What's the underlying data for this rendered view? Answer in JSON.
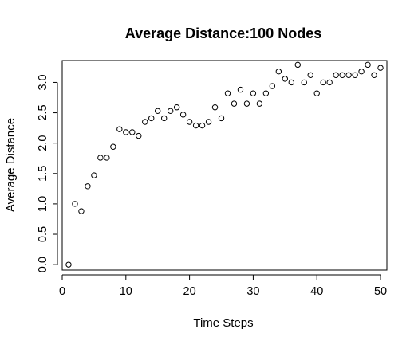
{
  "chart_data": {
    "type": "scatter",
    "title": "Average Distance:100 Nodes",
    "xlabel": "Time Steps",
    "ylabel": "Average Distance",
    "xlim": [
      0,
      51
    ],
    "ylim": [
      -0.09,
      3.36
    ],
    "xticks": [
      0,
      10,
      20,
      30,
      40,
      50
    ],
    "yticks": [
      0.0,
      0.5,
      1.0,
      1.5,
      2.0,
      2.5,
      3.0
    ],
    "xtick_labels": [
      "0",
      "10",
      "20",
      "30",
      "40",
      "50"
    ],
    "ytick_labels": [
      "0.0",
      "0.5",
      "1.0",
      "1.5",
      "2.0",
      "2.5",
      "3.0"
    ],
    "grid": false,
    "marker": "open-circle",
    "x": [
      1,
      2,
      3,
      4,
      5,
      6,
      7,
      8,
      9,
      10,
      11,
      12,
      13,
      14,
      15,
      16,
      17,
      18,
      19,
      20,
      21,
      22,
      23,
      24,
      25,
      26,
      27,
      28,
      29,
      30,
      31,
      32,
      33,
      34,
      35,
      36,
      37,
      38,
      39,
      40,
      41,
      42,
      43,
      44,
      45,
      46,
      47,
      48,
      49,
      50
    ],
    "y": [
      0.0,
      1.0,
      0.88,
      1.29,
      1.47,
      1.76,
      1.76,
      1.94,
      2.23,
      2.18,
      2.18,
      2.12,
      2.35,
      2.41,
      2.53,
      2.41,
      2.53,
      2.59,
      2.47,
      2.35,
      2.29,
      2.29,
      2.35,
      2.59,
      2.41,
      2.82,
      2.65,
      2.88,
      2.65,
      2.82,
      2.65,
      2.82,
      2.94,
      3.18,
      3.06,
      3.0,
      3.29,
      3.0,
      3.12,
      2.82,
      3.0,
      3.0,
      3.12,
      3.12,
      3.12,
      3.12,
      3.18,
      3.29,
      3.12,
      3.24
    ]
  }
}
